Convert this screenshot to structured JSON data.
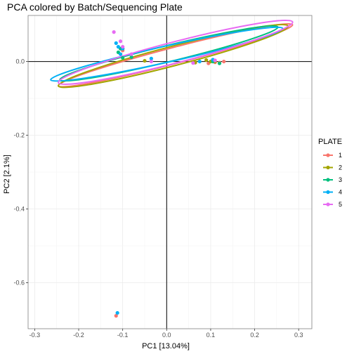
{
  "chart_data": {
    "type": "scatter",
    "title": "PCA colored by Batch/Sequencing Plate",
    "xlabel": "PC1 [13.04%]",
    "ylabel": "PC2 [2.1%]",
    "xlim": [
      -0.315,
      0.33
    ],
    "ylim": [
      -0.725,
      0.125
    ],
    "x_ticks": [
      -0.3,
      -0.2,
      -0.1,
      0.0,
      0.1,
      0.2,
      0.3
    ],
    "x_tick_labels": [
      "-0.3",
      "-0.2",
      "-0.1",
      "0.0",
      "0.1",
      "0.2",
      "0.3"
    ],
    "y_ticks": [
      0.0,
      -0.2,
      -0.4,
      -0.6
    ],
    "y_tick_labels": [
      "0.0",
      "-0.2",
      "-0.4",
      "-0.6"
    ],
    "reference_lines": {
      "x": 0,
      "y": 0
    },
    "grid": true,
    "legend": {
      "title": "PLATE",
      "position": "right"
    },
    "series": [
      {
        "name": "1",
        "color": "#F8766D",
        "points": [
          [
            -0.115,
            -0.69
          ],
          [
            0.105,
            0.003
          ],
          [
            0.11,
            -0.002
          ],
          [
            0.13,
            0.0
          ],
          [
            0.095,
            -0.005
          ],
          [
            -0.1,
            0.03
          ],
          [
            0.12,
            -0.003
          ]
        ],
        "ellipse": {
          "cx": 0.02,
          "cy": 0.017,
          "rx": 0.275,
          "ry": 0.01,
          "angle": -14.6
        }
      },
      {
        "name": "2",
        "color": "#A3A500",
        "points": [
          [
            0.1,
            0.0
          ],
          [
            0.065,
            -0.003
          ],
          [
            0.11,
            0.0
          ],
          [
            -0.05,
            0.002
          ],
          [
            -0.1,
            0.035
          ],
          [
            0.09,
            0.004
          ]
        ],
        "ellipse": {
          "cx": 0.015,
          "cy": 0.015,
          "rx": 0.27,
          "ry": 0.012,
          "angle": -14.6
        }
      },
      {
        "name": "3",
        "color": "#00BF7D",
        "points": [
          [
            -0.105,
            0.035
          ],
          [
            -0.1,
            0.01
          ],
          [
            0.12,
            -0.005
          ],
          [
            -0.11,
            0.025
          ],
          [
            0.105,
            0.0
          ],
          [
            -0.08,
            0.012
          ]
        ],
        "ellipse": {
          "cx": 0.005,
          "cy": 0.022,
          "rx": 0.255,
          "ry": 0.01,
          "angle": -13.6
        }
      },
      {
        "name": "4",
        "color": "#00B0F6",
        "points": [
          [
            -0.112,
            -0.682
          ],
          [
            -0.11,
            0.04
          ],
          [
            -0.105,
            0.02
          ],
          [
            -0.035,
            0.008
          ],
          [
            0.105,
            0.005
          ],
          [
            0.075,
            0.0
          ],
          [
            -0.1,
            0.035
          ],
          [
            -0.115,
            0.05
          ]
        ],
        "ellipse": {
          "cx": 0.0,
          "cy": 0.02,
          "rx": 0.27,
          "ry": 0.01,
          "angle": -12.5
        }
      },
      {
        "name": "5",
        "color": "#E76BF3",
        "points": [
          [
            -0.12,
            0.08
          ],
          [
            -0.08,
            0.02
          ],
          [
            -0.035,
            0.0
          ],
          [
            0.06,
            -0.004
          ],
          [
            -0.105,
            0.055
          ],
          [
            0.11,
            0.003
          ],
          [
            -0.1,
            0.04
          ]
        ],
        "ellipse": {
          "cx": 0.02,
          "cy": 0.025,
          "rx": 0.275,
          "ry": 0.013,
          "angle": -14.5
        }
      }
    ]
  }
}
